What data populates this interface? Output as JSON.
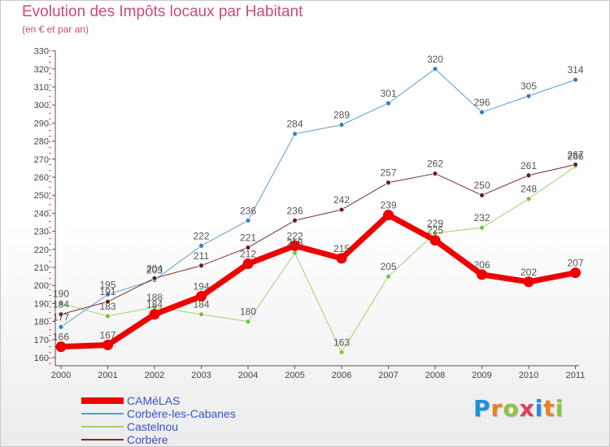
{
  "title": "Evolution des Impôts locaux par Habitant",
  "subtitle": "(en € et par an)",
  "logo": {
    "text": "Proxiti",
    "letter_colors": [
      "#1f8fd6",
      "#e8821e",
      "#8fc23a",
      "#e23c5b",
      "#1f8fd6",
      "#e8821e",
      "#8fc23a"
    ]
  },
  "chart_data": {
    "type": "line",
    "title": "Evolution des Impôts locaux par Habitant",
    "subtitle": "(en € et par an)",
    "xlabel": "",
    "ylabel": "",
    "x": [
      "2000",
      "2001",
      "2002",
      "2003",
      "2004",
      "2005",
      "2006",
      "2007",
      "2008",
      "2009",
      "2010",
      "2011"
    ],
    "ylim": [
      160,
      330
    ],
    "yticks": [
      160,
      170,
      180,
      190,
      200,
      210,
      220,
      230,
      240,
      250,
      260,
      270,
      280,
      290,
      300,
      310,
      320,
      330
    ],
    "grid": false,
    "legend_position": "bottom-left",
    "series": [
      {
        "name": "Corbère-les-Cabanes",
        "color": "#5b9bd5",
        "width": 1,
        "marker": "#3a7fc0",
        "values": [
          177,
          195,
          203,
          222,
          236,
          284,
          289,
          301,
          320,
          296,
          305,
          314
        ]
      },
      {
        "name": "Castelnou",
        "color": "#9ed36a",
        "width": 1,
        "marker": "#7dbf45",
        "values": [
          190,
          183,
          188,
          184,
          180,
          218,
          163,
          205,
          229,
          232,
          248,
          266
        ]
      },
      {
        "name": "Corbère",
        "color": "#7a2a2a",
        "width": 1,
        "marker": "#6b1e1e",
        "values": [
          184,
          191,
          204,
          211,
          221,
          236,
          242,
          257,
          262,
          250,
          261,
          267
        ]
      },
      {
        "name": "CAMéLAS",
        "color": "#ee0000",
        "width": 7,
        "marker": "#ee0000",
        "values": [
          166,
          167,
          184,
          194,
          212,
          222,
          215,
          239,
          225,
          206,
          202,
          207
        ]
      }
    ],
    "legend_order": [
      "CAMéLAS",
      "Corbère-les-Cabanes",
      "Castelnou",
      "Corbère"
    ]
  }
}
